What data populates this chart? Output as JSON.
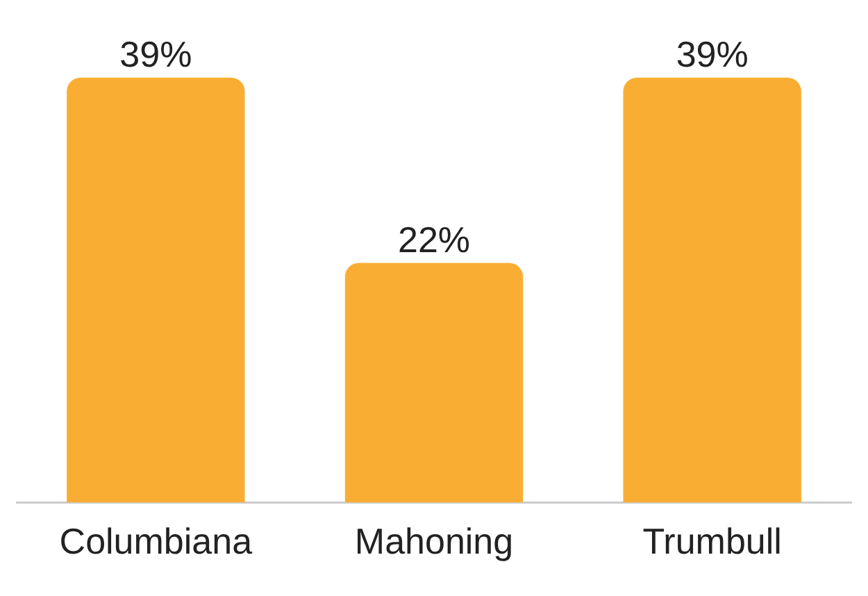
{
  "chart_data": {
    "type": "bar",
    "categories": [
      "Columbiana",
      "Mahoning",
      "Trumbull"
    ],
    "values": [
      39,
      22,
      39
    ],
    "value_labels": [
      "39%",
      "22%",
      "39%"
    ],
    "color": "#f9ae33",
    "grid": false,
    "legend": false,
    "tick_labels": "x"
  }
}
